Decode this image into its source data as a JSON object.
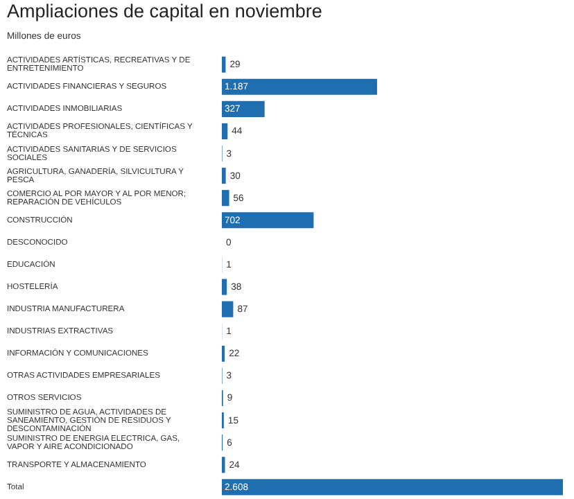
{
  "chart_data": {
    "type": "bar",
    "orientation": "horizontal",
    "title": "Ampliaciones de capital en noviembre",
    "subtitle": "Millones de euros",
    "categories": [
      "ACTIVIDADES ARTÍSTICAS, RECREATIVAS Y DE ENTRETENIMIENTO",
      "ACTIVIDADES FINANCIERAS Y SEGUROS",
      "ACTIVIDADES INMOBILIARIAS",
      "ACTIVIDADES PROFESIONALES, CIENTÍFICAS Y TÉCNICAS",
      "ACTIVIDADES SANITARIAS Y DE SERVICIOS SOCIALES",
      "AGRICULTURA, GANADERÍA, SILVICULTURA Y PESCA",
      "COMERCIO AL POR MAYOR Y AL POR MENOR; REPARACIÓN DE VEHÍCULOS",
      "CONSTRUCCIÓN",
      "DESCONOCIDO",
      "EDUCACIÓN",
      "HOSTELERÍA",
      "INDUSTRIA MANUFACTURERA",
      "INDUSTRIAS EXTRACTIVAS",
      "INFORMACIÓN Y COMUNICACIONES",
      "OTRAS ACTIVIDADES EMPRESARIALES",
      "OTROS SERVICIOS",
      "SUMINISTRO DE AGUA, ACTIVIDADES DE SANEAMIENTO, GESTIÓN DE RESIDUOS Y DESCONTAMINACIÓN",
      "SUMINISTRO DE ENERGIA ELECTRICA, GAS, VAPOR Y AIRE ACONDICIONADO",
      "TRANSPORTE Y ALMACENAMIENTO",
      "Total"
    ],
    "values": [
      29,
      1187,
      327,
      44,
      3,
      30,
      56,
      702,
      0,
      1,
      38,
      87,
      1,
      22,
      3,
      9,
      15,
      6,
      24,
      2608
    ],
    "value_labels": [
      "29",
      "1.187",
      "327",
      "44",
      "3",
      "30",
      "56",
      "702",
      "0",
      "1",
      "38",
      "87",
      "1",
      "22",
      "3",
      "9",
      "15",
      "6",
      "24",
      "2.608"
    ],
    "color": "#1f6eb0"
  }
}
